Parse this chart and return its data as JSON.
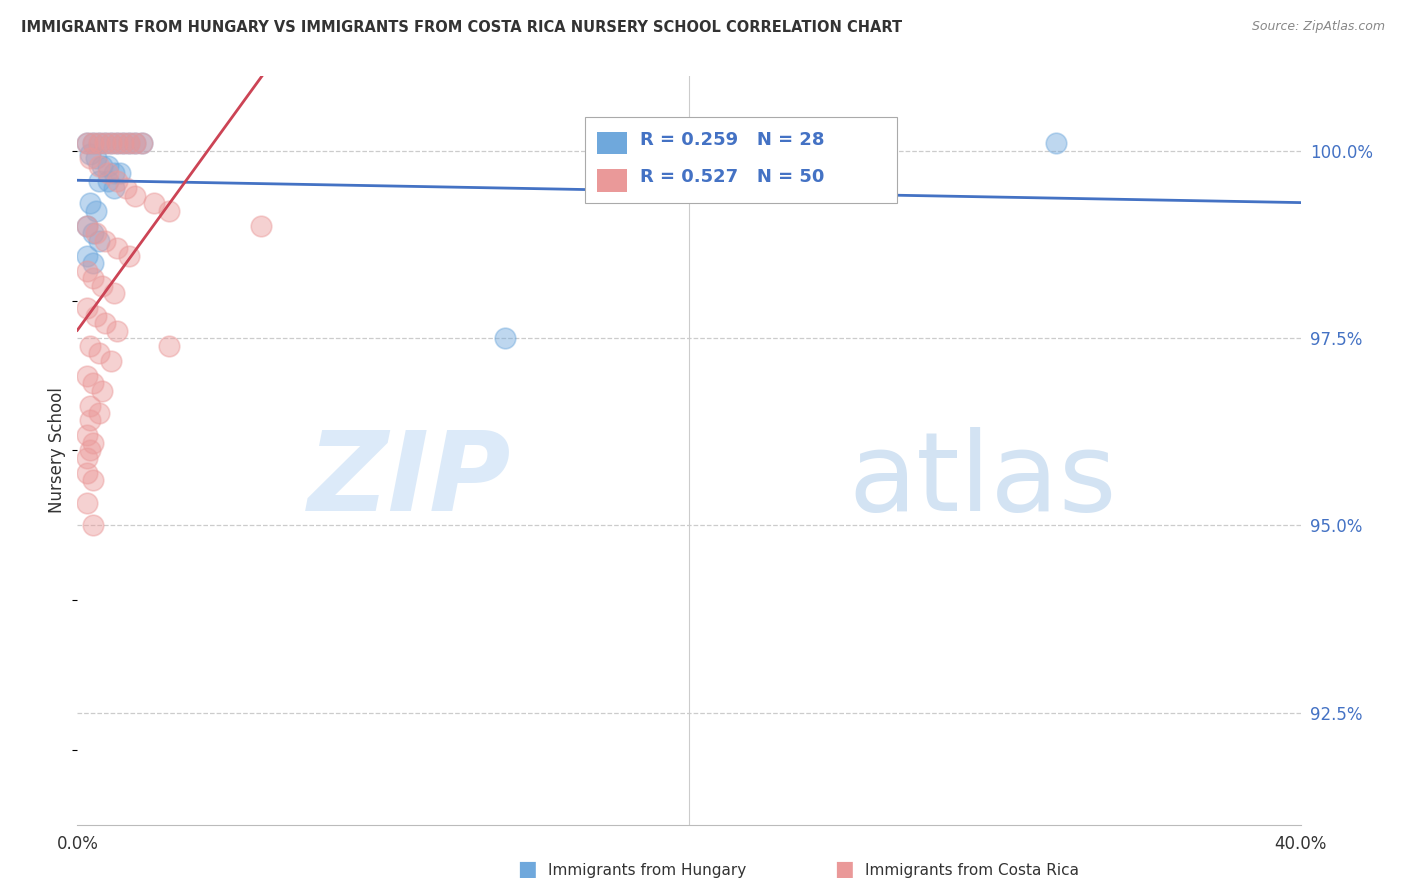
{
  "title": "IMMIGRANTS FROM HUNGARY VS IMMIGRANTS FROM COSTA RICA NURSERY SCHOOL CORRELATION CHART",
  "source": "Source: ZipAtlas.com",
  "ylabel": "Nursery School",
  "ytick_labels": [
    "100.0%",
    "97.5%",
    "95.0%",
    "92.5%"
  ],
  "ytick_values": [
    1.0,
    0.975,
    0.95,
    0.925
  ],
  "xlim": [
    0.0,
    0.4
  ],
  "ylim": [
    0.91,
    1.01
  ],
  "legend_r1": "R = 0.259",
  "legend_n1": "N = 28",
  "legend_r2": "R = 0.527",
  "legend_n2": "N = 50",
  "legend_label1": "Immigrants from Hungary",
  "legend_label2": "Immigrants from Costa Rica",
  "color_hungary": "#6fa8dc",
  "color_costa_rica": "#ea9999",
  "color_line_hungary": "#4472c4",
  "color_line_costa_rica": "#cc4455",
  "color_text_blue": "#4472c4",
  "color_text_dark": "#333333",
  "color_grid": "#cccccc",
  "background_color": "#ffffff",
  "hungary_x": [
    0.003,
    0.005,
    0.007,
    0.009,
    0.011,
    0.013,
    0.015,
    0.017,
    0.019,
    0.021,
    0.004,
    0.006,
    0.008,
    0.01,
    0.012,
    0.014,
    0.007,
    0.01,
    0.012,
    0.004,
    0.006,
    0.003,
    0.005,
    0.007,
    0.003,
    0.005,
    0.32,
    0.14
  ],
  "hungary_y": [
    1.001,
    1.001,
    1.001,
    1.001,
    1.001,
    1.001,
    1.001,
    1.001,
    1.001,
    1.001,
    0.9995,
    0.999,
    0.998,
    0.998,
    0.997,
    0.997,
    0.996,
    0.996,
    0.995,
    0.993,
    0.992,
    0.99,
    0.989,
    0.988,
    0.986,
    0.985,
    1.001,
    0.975
  ],
  "costa_rica_x": [
    0.003,
    0.005,
    0.007,
    0.009,
    0.011,
    0.013,
    0.015,
    0.017,
    0.019,
    0.021,
    0.004,
    0.007,
    0.01,
    0.013,
    0.016,
    0.019,
    0.025,
    0.03,
    0.003,
    0.006,
    0.009,
    0.013,
    0.017,
    0.003,
    0.005,
    0.008,
    0.012,
    0.003,
    0.006,
    0.009,
    0.013,
    0.004,
    0.007,
    0.011,
    0.003,
    0.005,
    0.008,
    0.004,
    0.007,
    0.004,
    0.003,
    0.005,
    0.004,
    0.003,
    0.003,
    0.005,
    0.03,
    0.06,
    0.003,
    0.005
  ],
  "costa_rica_y": [
    1.001,
    1.001,
    1.001,
    1.001,
    1.001,
    1.001,
    1.001,
    1.001,
    1.001,
    1.001,
    0.999,
    0.998,
    0.997,
    0.996,
    0.995,
    0.994,
    0.993,
    0.992,
    0.99,
    0.989,
    0.988,
    0.987,
    0.986,
    0.984,
    0.983,
    0.982,
    0.981,
    0.979,
    0.978,
    0.977,
    0.976,
    0.974,
    0.973,
    0.972,
    0.97,
    0.969,
    0.968,
    0.966,
    0.965,
    0.964,
    0.962,
    0.961,
    0.96,
    0.959,
    0.957,
    0.956,
    0.974,
    0.99,
    0.953,
    0.95
  ]
}
